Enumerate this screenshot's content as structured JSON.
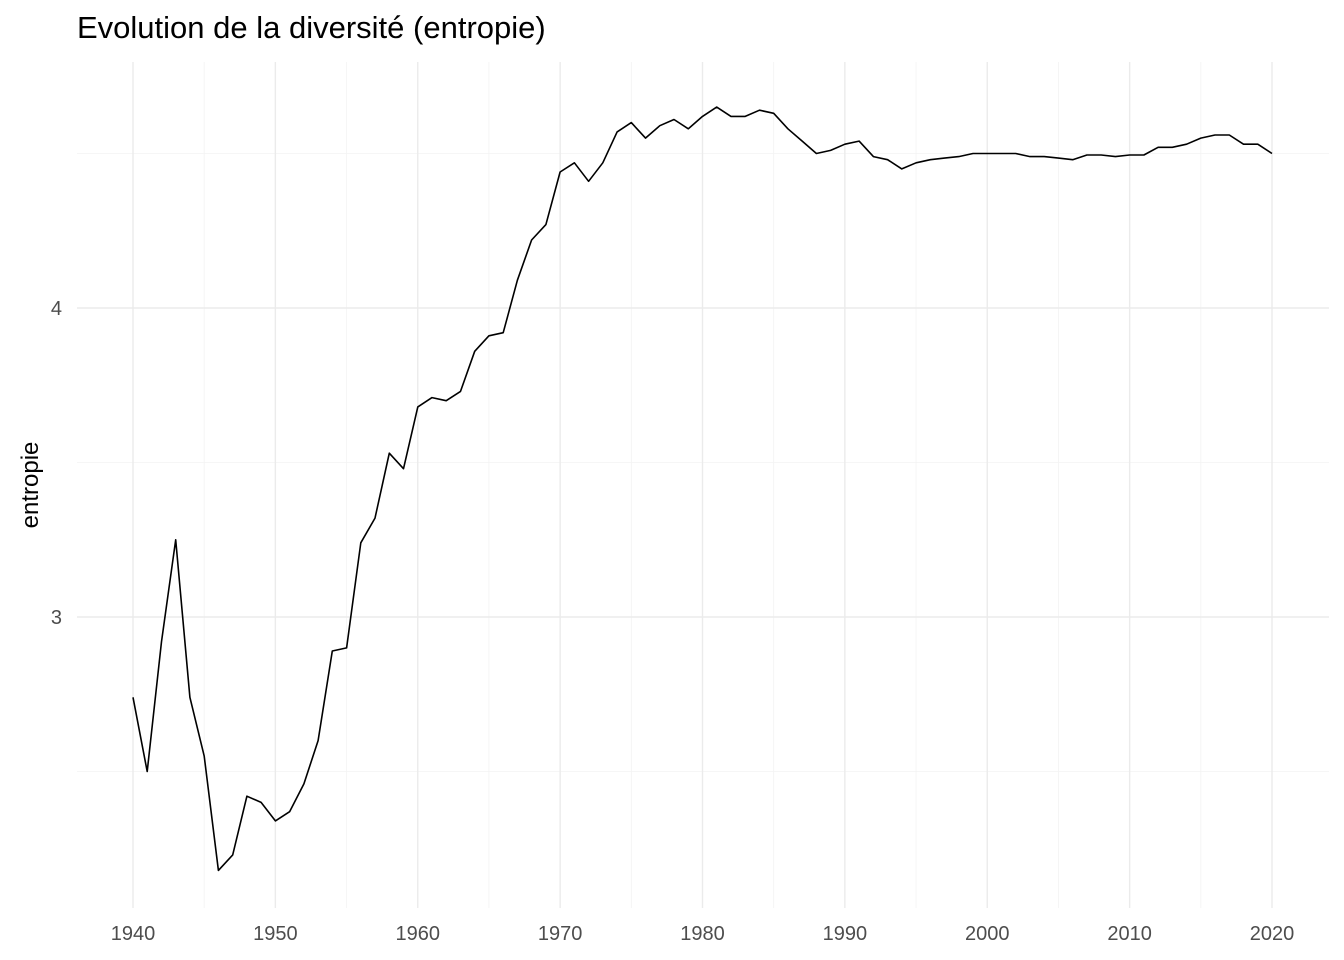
{
  "chart_data": {
    "type": "line",
    "title": "Evolution de la diversité (entropie)",
    "xlabel": "",
    "ylabel": "entropie",
    "xlim": [
      1940,
      2020
    ],
    "ylim": [
      2.3,
      4.75
    ],
    "x_ticks": [
      1940,
      1950,
      1960,
      1970,
      1980,
      1990,
      2000,
      2010,
      2020
    ],
    "y_ticks": [
      3,
      4
    ],
    "grid": true,
    "legend": "none",
    "series": [
      {
        "color": "#000000",
        "x": [
          1940,
          1941,
          1942,
          1943,
          1944,
          1945,
          1946,
          1947,
          1948,
          1949,
          1950,
          1951,
          1952,
          1953,
          1954,
          1955,
          1956,
          1957,
          1958,
          1959,
          1960,
          1961,
          1962,
          1963,
          1964,
          1965,
          1966,
          1967,
          1968,
          1969,
          1970,
          1971,
          1972,
          1973,
          1974,
          1975,
          1976,
          1977,
          1978,
          1979,
          1980,
          1981,
          1982,
          1983,
          1984,
          1985,
          1986,
          1987,
          1988,
          1989,
          1990,
          1991,
          1992,
          1993,
          1994,
          1995,
          1996,
          1997,
          1998,
          1999,
          2000,
          2001,
          2002,
          2003,
          2004,
          2005,
          2006,
          2007,
          2008,
          2009,
          2010,
          2011,
          2012,
          2013,
          2014,
          2015,
          2016,
          2017,
          2018,
          2019,
          2020
        ],
        "values": [
          2.74,
          2.5,
          2.92,
          3.25,
          2.74,
          2.55,
          2.18,
          2.23,
          2.42,
          2.4,
          2.34,
          2.37,
          2.46,
          2.6,
          2.89,
          2.9,
          3.24,
          3.32,
          3.53,
          3.48,
          3.68,
          3.71,
          3.7,
          3.73,
          3.86,
          3.91,
          3.92,
          4.09,
          4.22,
          4.27,
          4.44,
          4.47,
          4.41,
          4.47,
          4.57,
          4.6,
          4.55,
          4.59,
          4.61,
          4.58,
          4.62,
          4.65,
          4.62,
          4.62,
          4.64,
          4.63,
          4.58,
          4.54,
          4.5,
          4.51,
          4.53,
          4.54,
          4.49,
          4.48,
          4.45,
          4.47,
          4.48,
          4.485,
          4.49,
          4.5,
          4.5,
          4.5,
          4.5,
          4.49,
          4.49,
          4.485,
          4.48,
          4.495,
          4.495,
          4.49,
          4.495,
          4.495,
          4.52,
          4.52,
          4.53,
          4.55,
          4.56,
          4.56,
          4.53,
          4.53,
          4.5
        ]
      }
    ]
  }
}
